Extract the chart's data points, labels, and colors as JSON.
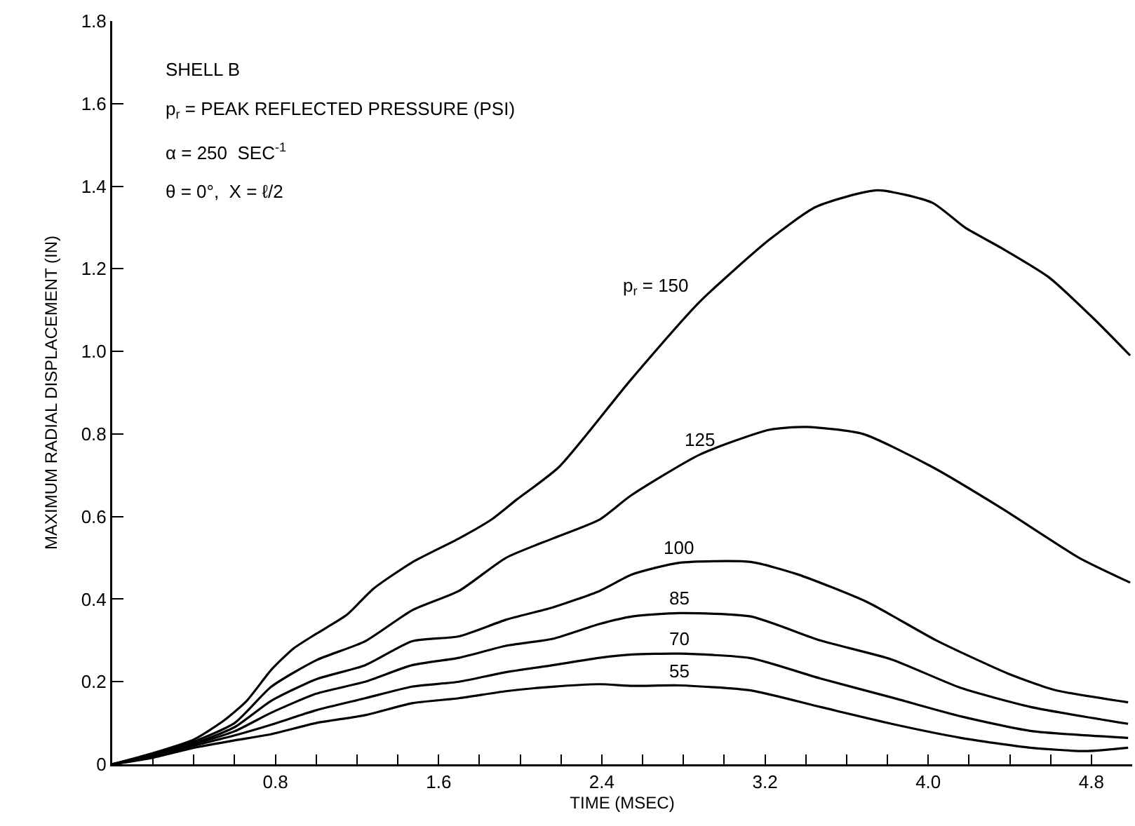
{
  "chart_data": {
    "type": "line",
    "xlabel": "TIME (MSEC)",
    "ylabel": "MAXIMUM RADIAL DISPLACEMENT (IN)",
    "annotations": [
      "SHELL B",
      "p$_{r}$ = PEAK REFLECTED PRESSURE (PSI)",
      "α = 250  SEC$^{-1}$",
      "θ = 0°,  X = ℓ/2"
    ],
    "xlim": [
      0,
      5.0
    ],
    "ylim": [
      0,
      1.8
    ],
    "xticks": [
      {
        "value": 0.2,
        "label": null
      },
      {
        "value": 0.4,
        "label": null
      },
      {
        "value": 0.6,
        "label": null
      },
      0.8,
      {
        "value": 1.0,
        "label": null
      },
      {
        "value": 1.2,
        "label": null
      },
      {
        "value": 1.4,
        "label": null
      },
      1.6,
      {
        "value": 1.8,
        "label": null
      },
      {
        "value": 2.0,
        "label": null
      },
      {
        "value": 2.2,
        "label": null
      },
      2.4,
      {
        "value": 2.6,
        "label": null
      },
      {
        "value": 2.8,
        "label": null
      },
      {
        "value": 3.0,
        "label": null
      },
      3.2,
      {
        "value": 3.4,
        "label": null
      },
      {
        "value": 3.6,
        "label": null
      },
      {
        "value": 3.8,
        "label": null
      },
      {
        "value": 4.0,
        "label": "4.0"
      },
      {
        "value": 4.2,
        "label": null
      },
      {
        "value": 4.4,
        "label": null
      },
      {
        "value": 4.6,
        "label": null
      },
      4.8
    ],
    "yticks": [
      0,
      0.2,
      0.4,
      0.6,
      0.8,
      {
        "value": 1.0,
        "label": "1.0"
      },
      1.2,
      1.4,
      1.6,
      1.8
    ],
    "grid": false,
    "legend": false,
    "marker": "none",
    "line_style": "solid",
    "series": [
      {
        "name": "p$_{r}$ = 150",
        "color": "#000000",
        "x": [
          0,
          0.2,
          0.4,
          0.55,
          0.66,
          0.78,
          0.89,
          1.0,
          1.15,
          1.28,
          1.47,
          1.7,
          1.86,
          1.98,
          2.19,
          2.54,
          2.88,
          3.22,
          3.45,
          3.75,
          4.02,
          4.18,
          4.36,
          4.59,
          4.81,
          4.99
        ],
        "values": [
          0,
          0.027,
          0.06,
          0.107,
          0.154,
          0.229,
          0.281,
          0.316,
          0.362,
          0.425,
          0.489,
          0.547,
          0.593,
          0.64,
          0.72,
          0.93,
          1.12,
          1.27,
          1.35,
          1.39,
          1.36,
          1.3,
          1.25,
          1.18,
          1.08,
          0.99
        ]
      },
      {
        "name": "125",
        "color": "#000000",
        "x": [
          0,
          0.2,
          0.4,
          0.6,
          0.78,
          1.0,
          1.24,
          1.47,
          1.7,
          1.93,
          2.16,
          2.39,
          2.54,
          2.88,
          3.22,
          3.4,
          3.68,
          4.02,
          4.36,
          4.74,
          4.99
        ],
        "values": [
          0,
          0.025,
          0.055,
          0.1,
          0.188,
          0.252,
          0.298,
          0.373,
          0.42,
          0.5,
          0.547,
          0.593,
          0.65,
          0.75,
          0.81,
          0.817,
          0.8,
          0.72,
          0.62,
          0.5,
          0.44
        ]
      },
      {
        "name": "100",
        "color": "#000000",
        "x": [
          0,
          0.2,
          0.4,
          0.6,
          0.78,
          1.0,
          1.24,
          1.47,
          1.7,
          1.93,
          2.16,
          2.39,
          2.55,
          2.78,
          3.13,
          3.36,
          3.7,
          4.04,
          4.39,
          4.62,
          4.98
        ],
        "values": [
          0,
          0.022,
          0.05,
          0.09,
          0.154,
          0.206,
          0.24,
          0.298,
          0.31,
          0.35,
          0.38,
          0.42,
          0.46,
          0.488,
          0.49,
          0.46,
          0.393,
          0.3,
          0.22,
          0.18,
          0.15
        ]
      },
      {
        "name": "85",
        "color": "#000000",
        "x": [
          0,
          0.2,
          0.4,
          0.6,
          0.78,
          1.0,
          1.24,
          1.47,
          1.7,
          1.93,
          2.16,
          2.39,
          2.55,
          2.78,
          3.13,
          3.47,
          3.82,
          4.16,
          4.5,
          4.98
        ],
        "values": [
          0,
          0.02,
          0.048,
          0.08,
          0.125,
          0.171,
          0.2,
          0.24,
          0.258,
          0.287,
          0.304,
          0.34,
          0.358,
          0.366,
          0.358,
          0.3,
          0.254,
          0.185,
          0.139,
          0.098
        ]
      },
      {
        "name": "70",
        "color": "#000000",
        "x": [
          0,
          0.2,
          0.4,
          0.6,
          0.78,
          1.0,
          1.24,
          1.47,
          1.7,
          1.93,
          2.16,
          2.39,
          2.55,
          2.78,
          3.13,
          3.47,
          3.82,
          4.16,
          4.5,
          4.98
        ],
        "values": [
          0,
          0.018,
          0.045,
          0.07,
          0.096,
          0.131,
          0.16,
          0.188,
          0.2,
          0.223,
          0.24,
          0.258,
          0.266,
          0.268,
          0.257,
          0.208,
          0.162,
          0.116,
          0.081,
          0.064
        ]
      },
      {
        "name": "55",
        "color": "#000000",
        "x": [
          0,
          0.2,
          0.4,
          0.6,
          0.78,
          1.0,
          1.24,
          1.47,
          1.7,
          1.93,
          2.16,
          2.39,
          2.55,
          2.78,
          3.13,
          3.47,
          3.82,
          4.16,
          4.5,
          4.78,
          4.98
        ],
        "values": [
          0,
          0.016,
          0.04,
          0.058,
          0.073,
          0.1,
          0.119,
          0.148,
          0.16,
          0.177,
          0.188,
          0.194,
          0.19,
          0.191,
          0.179,
          0.139,
          0.098,
          0.064,
          0.04,
          0.032,
          0.04
        ]
      }
    ]
  }
}
